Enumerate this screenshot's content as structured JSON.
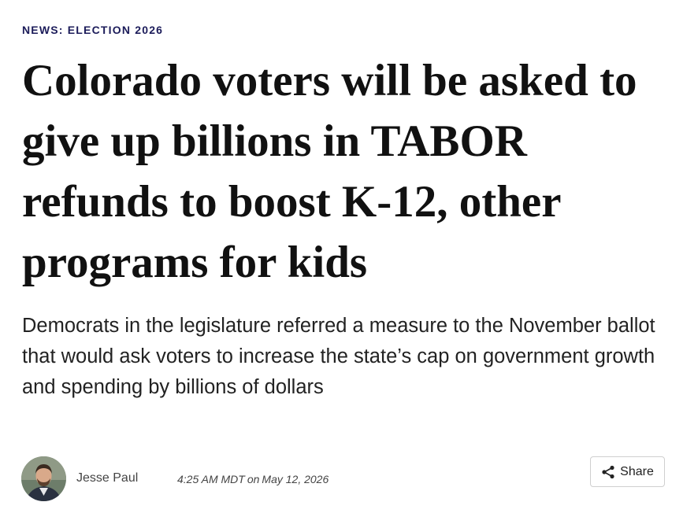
{
  "section_label": "NEWS: ELECTION 2026",
  "headline": "Colorado voters will be asked to give up billions in TABOR refunds to boost K-12, other programs for kids",
  "dek": "Democrats in the legislature referred a measure to the November ballot that would ask voters to increase the state’s cap on government growth and spending by billions of dollars",
  "byline": {
    "author": "Jesse Paul",
    "time": "4:25 AM MDT",
    "connector": "on",
    "date": "May 12, 2026"
  },
  "share_button": "Share"
}
